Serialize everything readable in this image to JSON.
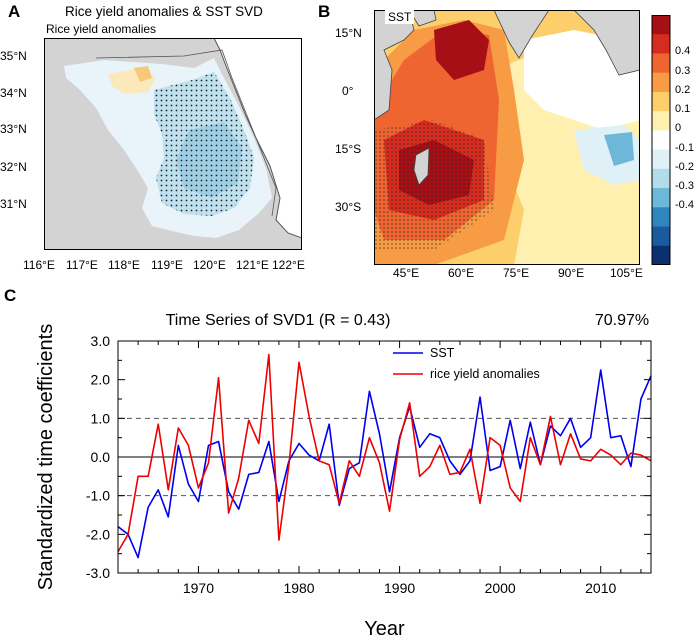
{
  "panels": {
    "a": {
      "letter": "A",
      "title": "Rice yield anomalies & SST SVD",
      "subtitle": "Rice yield anomalies",
      "lat_ticks": [
        "35°N",
        "34°N",
        "33°N",
        "32°N",
        "31°N"
      ],
      "lon_ticks": [
        "116°E",
        "117°E",
        "118°E",
        "119°E",
        "120°E",
        "121°E",
        "122°E"
      ]
    },
    "b": {
      "letter": "B",
      "subtitle": "SST",
      "lat_ticks": [
        "15°N",
        "0°",
        "15°S",
        "30°S"
      ],
      "lon_ticks": [
        "45°E",
        "60°E",
        "75°E",
        "90°E",
        "105°E"
      ],
      "colorbar": {
        "labels": [
          "0.4",
          "0.3",
          "0.2",
          "0.1",
          "0",
          "-0.1",
          "-0.2",
          "-0.3",
          "-0.4"
        ],
        "colors": [
          "#a50f15",
          "#d62c1f",
          "#ef6532",
          "#f79b45",
          "#fccf6c",
          "#fff0b0",
          "#ffffff",
          "#e0f0f7",
          "#b3dceb",
          "#6db8d9",
          "#2f86bf",
          "#1b5aa0",
          "#0a3070"
        ]
      }
    },
    "c": {
      "letter": "C"
    }
  },
  "chart_data": {
    "type": "line",
    "title": "Time Series of SVD1 (R =  0.43)",
    "annotation": "70.97%",
    "xlabel": "Year",
    "ylabel": "Standardized time coefficients",
    "xlim": [
      1962,
      2015
    ],
    "ylim": [
      -3.0,
      3.0
    ],
    "x_ticks": [
      "1970",
      "1980",
      "1990",
      "2000",
      "2010"
    ],
    "y_ticks": [
      "3.0",
      "2.0",
      "1.0",
      "0.0",
      "-1.0",
      "-2.0",
      "-3.0"
    ],
    "reference_lines": [
      1.0,
      0.0,
      -1.0
    ],
    "legend_position": "top-center",
    "x": [
      1962,
      1963,
      1964,
      1965,
      1966,
      1967,
      1968,
      1969,
      1970,
      1971,
      1972,
      1973,
      1974,
      1975,
      1976,
      1977,
      1978,
      1979,
      1980,
      1981,
      1982,
      1983,
      1984,
      1985,
      1986,
      1987,
      1988,
      1989,
      1990,
      1991,
      1992,
      1993,
      1994,
      1995,
      1996,
      1997,
      1998,
      1999,
      2000,
      2001,
      2002,
      2003,
      2004,
      2005,
      2006,
      2007,
      2008,
      2009,
      2010,
      2011,
      2012,
      2013,
      2014,
      2015
    ],
    "series": [
      {
        "name": "SST",
        "color": "#0000ee",
        "values": [
          -1.8,
          -2.0,
          -2.6,
          -1.3,
          -0.85,
          -1.55,
          0.3,
          -0.7,
          -1.15,
          0.3,
          0.4,
          -0.9,
          -1.35,
          -0.45,
          -0.4,
          0.4,
          -1.15,
          -0.1,
          0.35,
          0.05,
          -0.1,
          0.85,
          -1.25,
          -0.3,
          -0.15,
          1.7,
          0.6,
          -0.9,
          0.5,
          1.3,
          0.25,
          0.6,
          0.5,
          -0.1,
          -0.45,
          -0.1,
          1.55,
          -0.35,
          -0.25,
          0.95,
          -0.3,
          0.9,
          -0.2,
          0.8,
          0.55,
          1.0,
          0.25,
          0.5,
          2.25,
          0.5,
          0.55,
          -0.25,
          1.5,
          2.1
        ]
      },
      {
        "name": "rice yield anomalies",
        "color": "#ee0000",
        "values": [
          -2.45,
          -2.0,
          -0.5,
          -0.5,
          0.85,
          -0.85,
          0.75,
          0.3,
          -0.8,
          -0.15,
          2.05,
          -1.45,
          -0.55,
          0.95,
          0.35,
          2.65,
          -2.15,
          -0.2,
          2.45,
          1.05,
          -0.1,
          -0.2,
          -1.2,
          -0.1,
          -0.5,
          0.5,
          -0.15,
          -1.4,
          0.45,
          1.4,
          -0.5,
          -0.25,
          0.3,
          -0.45,
          -0.4,
          0.2,
          -1.2,
          0.5,
          0.3,
          -0.8,
          -1.15,
          0.5,
          -0.2,
          1.05,
          -0.2,
          0.6,
          -0.05,
          -0.1,
          0.2,
          0.05,
          -0.2,
          0.1,
          0.05,
          -0.1
        ]
      }
    ]
  }
}
